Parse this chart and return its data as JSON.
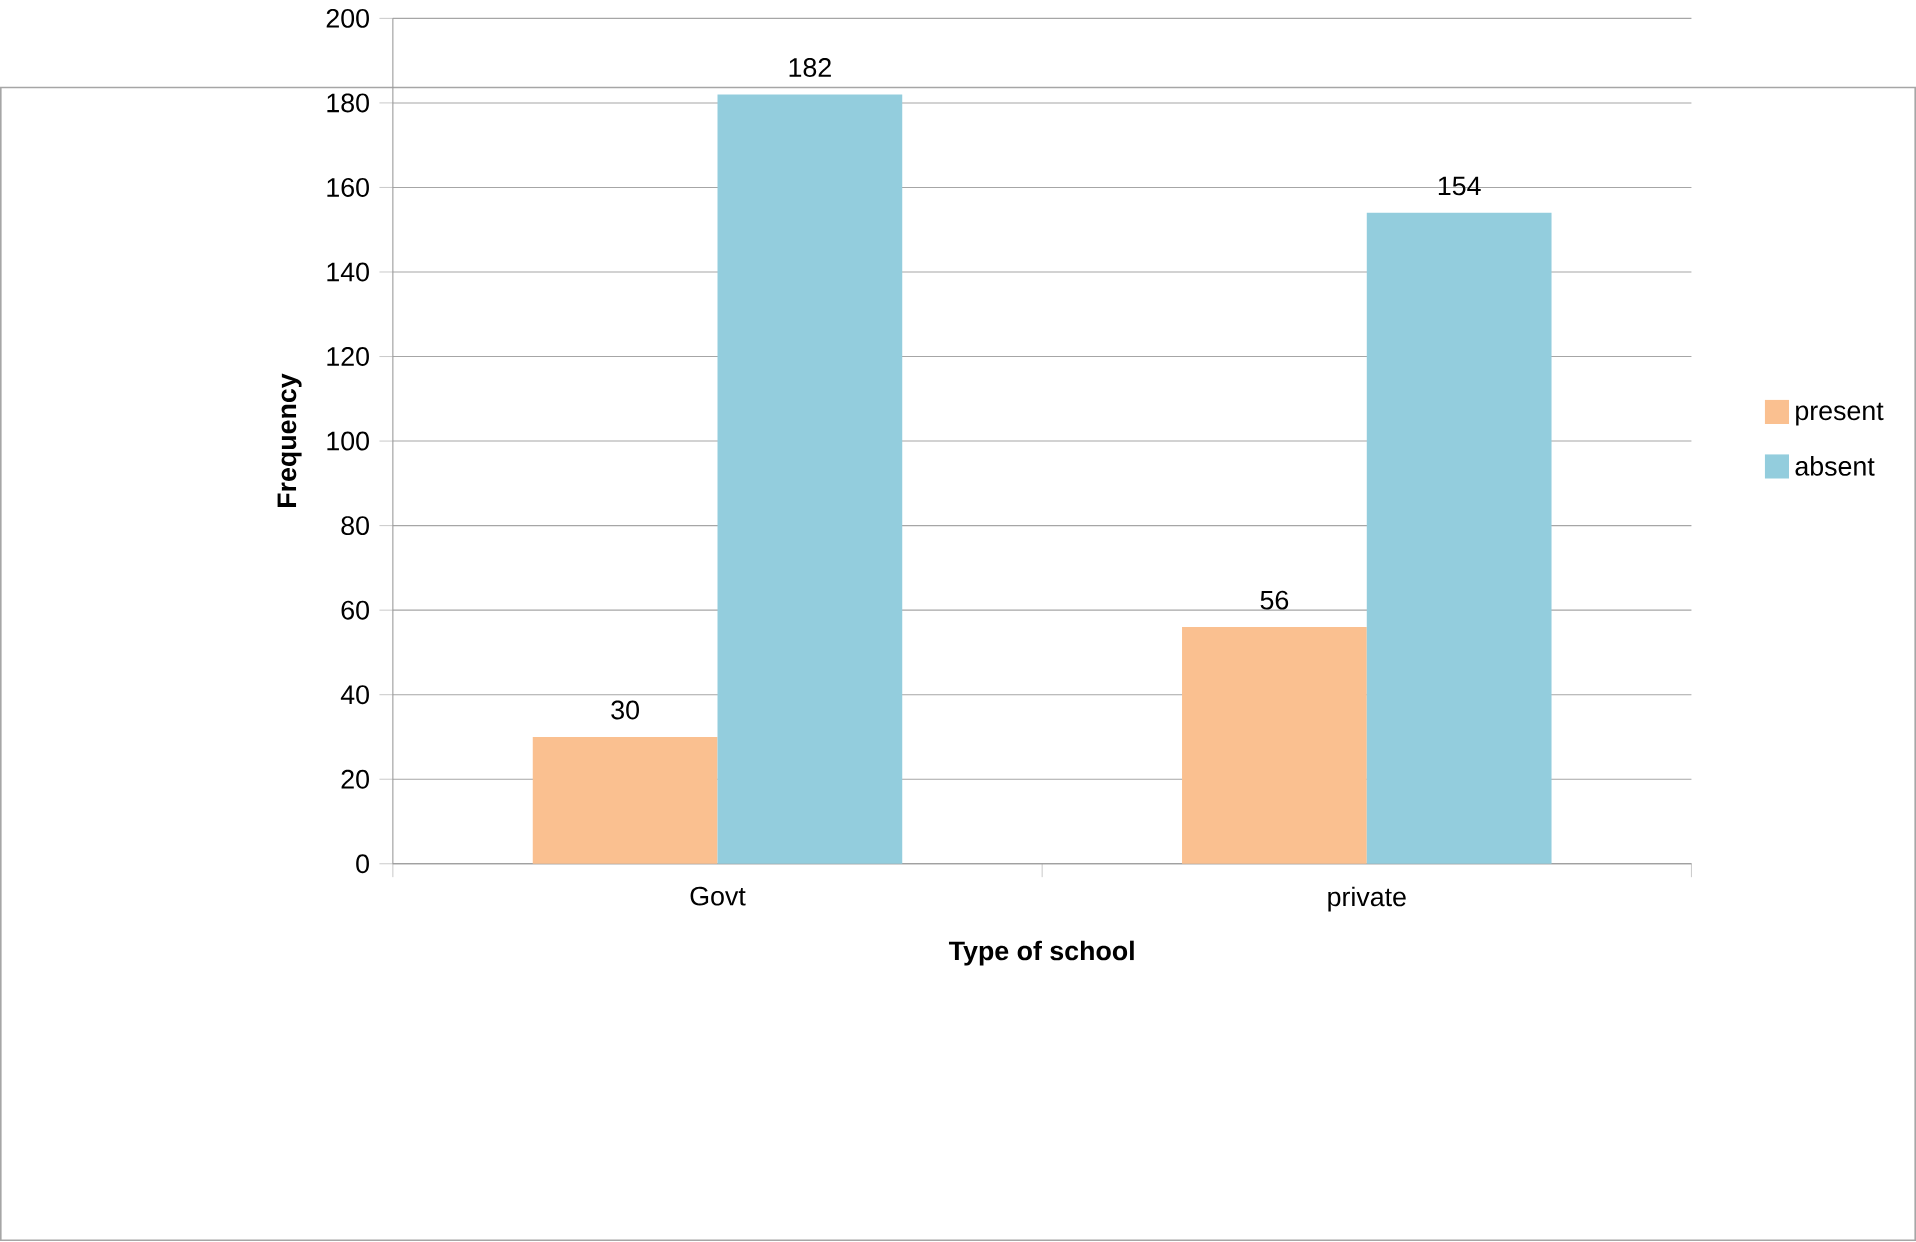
{
  "chart_data": {
    "type": "bar",
    "xlabel": "Type of school",
    "ylabel": "Frequency",
    "categories": [
      "Govt",
      "private"
    ],
    "series": [
      {
        "name": "present",
        "color": "#fac090",
        "values": [
          30,
          56
        ]
      },
      {
        "name": "absent",
        "color": "#93cddd",
        "values": [
          182,
          154
        ]
      }
    ],
    "ylim": [
      0,
      200
    ],
    "yticks": [
      0,
      20,
      40,
      60,
      80,
      100,
      120,
      140,
      160,
      180,
      200
    ],
    "grid": "y",
    "legend": "right",
    "data_labels": true
  }
}
